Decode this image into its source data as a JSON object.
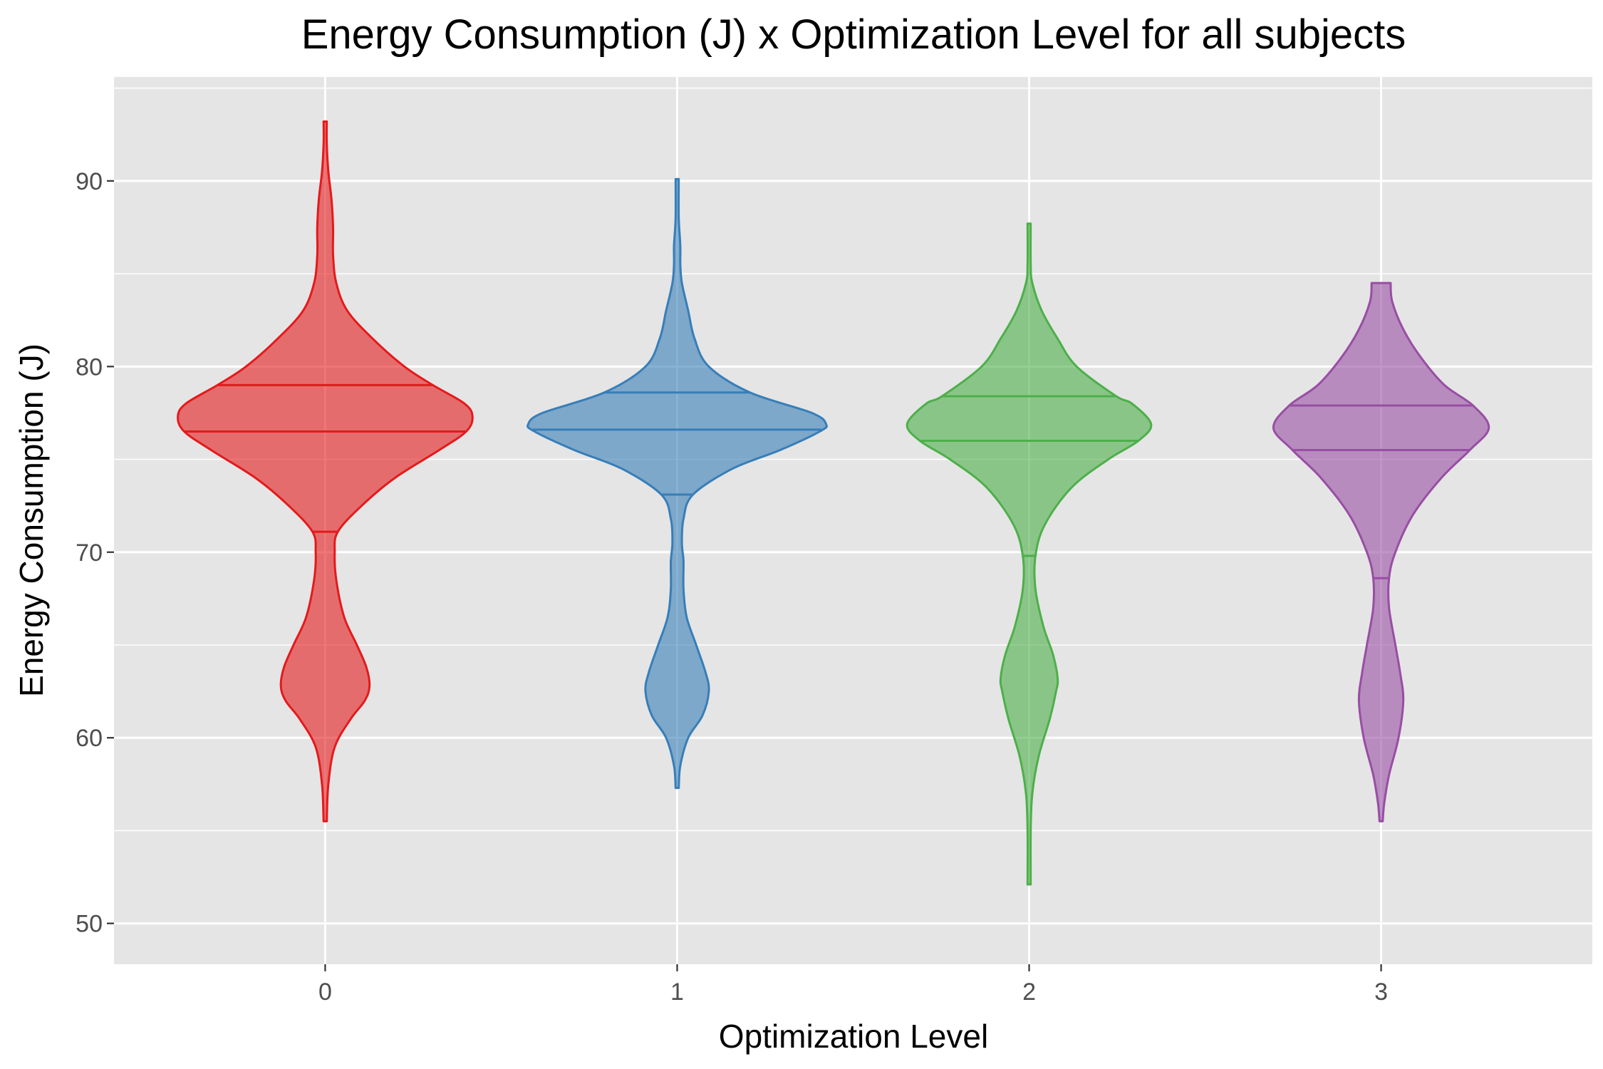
{
  "chart_data": {
    "type": "violin",
    "title": "Energy Consumption (J) x Optimization Level for all subjects",
    "xlabel": "Optimization Level",
    "ylabel": "Energy Consumption (J)",
    "categories": [
      "0",
      "1",
      "2",
      "3"
    ],
    "ylim": [
      47.8,
      95.6
    ],
    "yticks": [
      50,
      60,
      70,
      80,
      90
    ],
    "grid": true,
    "legend": "none",
    "draw_quantiles": [
      0.25,
      0.5,
      0.75
    ],
    "violins": [
      {
        "category": "0",
        "color": "#E41A1C",
        "min": 55.5,
        "max": 93.2,
        "quantiles": {
          "q25": 71.1,
          "median": 76.5,
          "q75": 79.0
        },
        "profile": [
          [
            55.5,
            0.01
          ],
          [
            57.5,
            0.02
          ],
          [
            59.5,
            0.06
          ],
          [
            61.0,
            0.16
          ],
          [
            62.0,
            0.25
          ],
          [
            62.8,
            0.28
          ],
          [
            63.8,
            0.26
          ],
          [
            65.0,
            0.2
          ],
          [
            66.5,
            0.12
          ],
          [
            68.5,
            0.07
          ],
          [
            70.0,
            0.06
          ],
          [
            71.1,
            0.08
          ],
          [
            72.5,
            0.23
          ],
          [
            74.0,
            0.44
          ],
          [
            75.5,
            0.72
          ],
          [
            76.5,
            0.89
          ],
          [
            77.3,
            0.93
          ],
          [
            78.0,
            0.88
          ],
          [
            79.0,
            0.68
          ],
          [
            80.0,
            0.5
          ],
          [
            81.5,
            0.3
          ],
          [
            83.0,
            0.14
          ],
          [
            84.5,
            0.07
          ],
          [
            86.0,
            0.05
          ],
          [
            87.5,
            0.05
          ],
          [
            89.0,
            0.04
          ],
          [
            90.5,
            0.02
          ],
          [
            92.0,
            0.01
          ],
          [
            93.2,
            0.01
          ]
        ]
      },
      {
        "category": "1",
        "color": "#377EB8",
        "min": 57.3,
        "max": 90.1,
        "quantiles": {
          "q25": 73.1,
          "median": 76.6,
          "q75": 78.6
        },
        "profile": [
          [
            57.3,
            0.01
          ],
          [
            58.5,
            0.02
          ],
          [
            60.0,
            0.07
          ],
          [
            61.2,
            0.16
          ],
          [
            62.5,
            0.2
          ],
          [
            63.5,
            0.18
          ],
          [
            65.0,
            0.12
          ],
          [
            66.5,
            0.06
          ],
          [
            68.0,
            0.04
          ],
          [
            69.5,
            0.04
          ],
          [
            70.5,
            0.03
          ],
          [
            71.8,
            0.04
          ],
          [
            73.1,
            0.1
          ],
          [
            74.5,
            0.35
          ],
          [
            75.5,
            0.65
          ],
          [
            76.5,
            0.9
          ],
          [
            76.9,
            0.94
          ],
          [
            77.5,
            0.85
          ],
          [
            78.6,
            0.46
          ],
          [
            80.0,
            0.2
          ],
          [
            81.5,
            0.11
          ],
          [
            83.0,
            0.07
          ],
          [
            84.5,
            0.03
          ],
          [
            85.5,
            0.02
          ],
          [
            86.5,
            0.02
          ],
          [
            88.0,
            0.01
          ],
          [
            90.1,
            0.01
          ]
        ]
      },
      {
        "category": "2",
        "color": "#4DAF4A",
        "min": 52.1,
        "max": 87.7,
        "quantiles": {
          "q25": 69.8,
          "median": 76.0,
          "q75": 78.4
        },
        "profile": [
          [
            52.1,
            0.01
          ],
          [
            55.0,
            0.01
          ],
          [
            57.0,
            0.02
          ],
          [
            59.0,
            0.06
          ],
          [
            61.0,
            0.13
          ],
          [
            62.5,
            0.17
          ],
          [
            63.2,
            0.18
          ],
          [
            64.5,
            0.15
          ],
          [
            66.0,
            0.09
          ],
          [
            68.0,
            0.04
          ],
          [
            69.8,
            0.04
          ],
          [
            71.5,
            0.1
          ],
          [
            73.5,
            0.27
          ],
          [
            75.0,
            0.5
          ],
          [
            76.0,
            0.69
          ],
          [
            76.9,
            0.77
          ],
          [
            78.0,
            0.65
          ],
          [
            78.4,
            0.55
          ],
          [
            80.0,
            0.3
          ],
          [
            81.5,
            0.18
          ],
          [
            83.0,
            0.08
          ],
          [
            84.5,
            0.02
          ],
          [
            85.5,
            0.01
          ],
          [
            87.7,
            0.01
          ]
        ]
      },
      {
        "category": "3",
        "color": "#984EA3",
        "min": 55.5,
        "max": 84.5,
        "quantiles": {
          "q25": 68.6,
          "median": 75.5,
          "q75": 77.9
        },
        "profile": [
          [
            55.5,
            0.01
          ],
          [
            56.5,
            0.02
          ],
          [
            58.0,
            0.05
          ],
          [
            60.0,
            0.11
          ],
          [
            62.0,
            0.14
          ],
          [
            63.5,
            0.12
          ],
          [
            65.0,
            0.09
          ],
          [
            67.0,
            0.05
          ],
          [
            68.6,
            0.05
          ],
          [
            70.0,
            0.09
          ],
          [
            72.0,
            0.2
          ],
          [
            74.0,
            0.38
          ],
          [
            75.5,
            0.56
          ],
          [
            76.7,
            0.68
          ],
          [
            77.9,
            0.58
          ],
          [
            79.0,
            0.4
          ],
          [
            80.5,
            0.25
          ],
          [
            82.0,
            0.14
          ],
          [
            83.5,
            0.07
          ],
          [
            84.5,
            0.06
          ]
        ]
      }
    ]
  }
}
